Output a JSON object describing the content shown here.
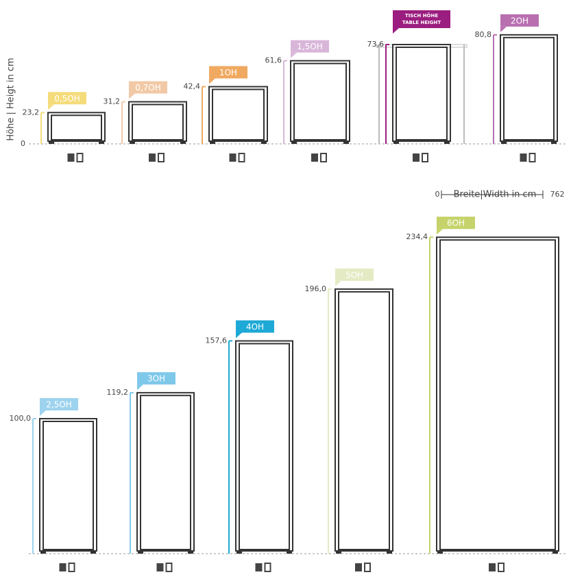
{
  "axis_label": "Höhe | Heigt in cm",
  "zero_label": "0",
  "width_scale": {
    "title": "Breite|Width in cm",
    "min_label": "0",
    "max_label": "762"
  },
  "table_label": [
    "TISCH HÖHE",
    "TABLE HEIGHT"
  ],
  "items": [
    {
      "label": "0,5OH",
      "height": 23.2,
      "height_label": "23,2",
      "color": "#f5dc7a"
    },
    {
      "label": "0,7OH",
      "height": 31.2,
      "height_label": "31,2",
      "color": "#f2c9a6"
    },
    {
      "label": "1OH",
      "height": 42.4,
      "height_label": "42,4",
      "color": "#f0a960"
    },
    {
      "label": "1,5OH",
      "height": 61.6,
      "height_label": "61,6",
      "color": "#d9b6d9"
    },
    {
      "label": null,
      "height": 73.6,
      "height_label": "73,6",
      "color": "#9b1d7f"
    },
    {
      "label": "2OH",
      "height": 80.8,
      "height_label": "80,8",
      "color": "#b86fb0"
    },
    {
      "label": "2,5OH",
      "height": 100.0,
      "height_label": "100,0",
      "color": "#9dd3ee"
    },
    {
      "label": "3OH",
      "height": 119.2,
      "height_label": "119,2",
      "color": "#7ec8ea"
    },
    {
      "label": "4OH",
      "height": 157.6,
      "height_label": "157,6",
      "color": "#1ea9d6"
    },
    {
      "label": "5OH",
      "height": 196.0,
      "height_label": "196,0",
      "color": "#e4ebc4"
    },
    {
      "label": "6OH",
      "height": 234.4,
      "height_label": "234,4",
      "color": "#c5d36a"
    }
  ]
}
